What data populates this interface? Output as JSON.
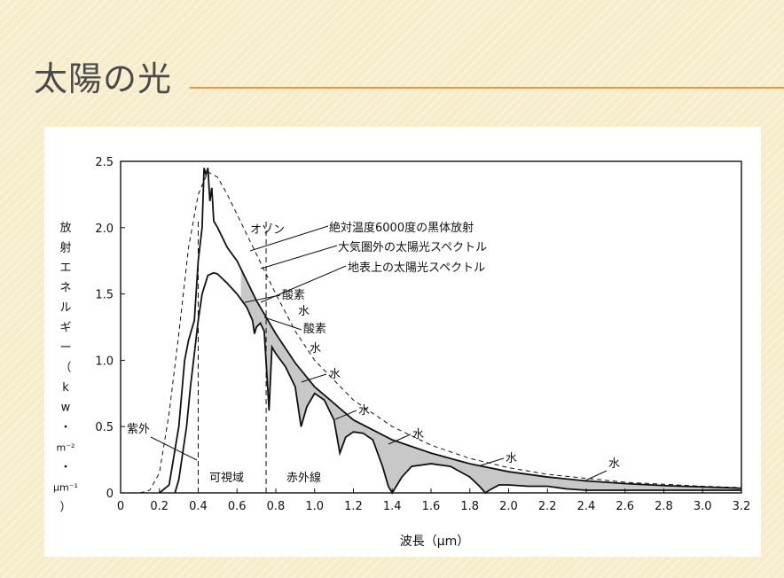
{
  "slide": {
    "title": "太陽の光"
  },
  "chart_data": {
    "type": "line",
    "xlabel": "波長（μm）",
    "ylabel": [
      "放",
      "射",
      "エ",
      "ネ",
      "ル",
      "ギ",
      "ー",
      "（",
      "k",
      "w",
      "・",
      "m⁻²",
      "・",
      "μm⁻¹",
      "）"
    ],
    "xlim": [
      0,
      3.2
    ],
    "ylim": [
      0,
      2.5
    ],
    "xticks": [
      "0",
      "0.2",
      "0.4",
      "0.6",
      "0.8",
      "1.0",
      "1.2",
      "1.4",
      "1.6",
      "1.8",
      "2.0",
      "2.2",
      "2.4",
      "2.6",
      "2.8",
      "3.0",
      "3.2"
    ],
    "yticks": [
      "0",
      "0.5",
      "1.0",
      "1.5",
      "2.0",
      "2.5"
    ],
    "legend_labels": [
      "絶対温度6000度の黒体放射",
      "大気圏外の太陽光スペクトル",
      "地表上の太陽光スペクトル"
    ],
    "regions": [
      "紫外",
      "可視域",
      "赤外線"
    ],
    "absorption_labels": [
      "オゾン",
      "酸素",
      "水",
      "酸素",
      "水",
      "水",
      "水",
      "水",
      "水",
      "水"
    ],
    "region_bounds": [
      0.4,
      0.75
    ],
    "series": [
      {
        "name": "絶対温度6000度の黒体放射",
        "style": "dashed",
        "x": [
          0.1,
          0.15,
          0.2,
          0.25,
          0.3,
          0.35,
          0.4,
          0.45,
          0.5,
          0.55,
          0.6,
          0.7,
          0.8,
          0.9,
          1.0,
          1.2,
          1.4,
          1.6,
          1.8,
          2.0,
          2.2,
          2.4,
          2.6,
          2.8,
          3.0,
          3.2
        ],
        "y": [
          0.0,
          0.02,
          0.15,
          0.6,
          1.2,
          1.85,
          2.25,
          2.42,
          2.38,
          2.25,
          2.1,
          1.8,
          1.5,
          1.22,
          1.0,
          0.7,
          0.5,
          0.36,
          0.26,
          0.19,
          0.14,
          0.11,
          0.08,
          0.065,
          0.05,
          0.04
        ]
      },
      {
        "name": "大気圏外の太陽光スペクトル",
        "style": "solid",
        "x": [
          0.2,
          0.25,
          0.3,
          0.33,
          0.35,
          0.38,
          0.4,
          0.42,
          0.43,
          0.44,
          0.45,
          0.46,
          0.47,
          0.48,
          0.5,
          0.55,
          0.6,
          0.7,
          0.8,
          0.9,
          1.0,
          1.2,
          1.4,
          1.6,
          1.8,
          2.0,
          2.2,
          2.4,
          2.6,
          2.8,
          3.0,
          3.2
        ],
        "y": [
          0.0,
          0.06,
          0.5,
          1.0,
          1.15,
          1.3,
          1.75,
          2.0,
          2.45,
          2.4,
          2.45,
          2.2,
          2.3,
          2.05,
          2.0,
          1.85,
          1.75,
          1.45,
          1.2,
          0.98,
          0.8,
          0.55,
          0.4,
          0.3,
          0.22,
          0.16,
          0.12,
          0.09,
          0.07,
          0.055,
          0.045,
          0.035
        ]
      },
      {
        "name": "地表上の太陽光スペクトル",
        "style": "solid",
        "x": [
          0.28,
          0.3,
          0.32,
          0.34,
          0.36,
          0.38,
          0.4,
          0.42,
          0.45,
          0.48,
          0.5,
          0.55,
          0.6,
          0.65,
          0.68,
          0.69,
          0.7,
          0.72,
          0.74,
          0.76,
          0.765,
          0.78,
          0.8,
          0.85,
          0.9,
          0.93,
          0.96,
          1.0,
          1.05,
          1.1,
          1.13,
          1.16,
          1.2,
          1.25,
          1.3,
          1.35,
          1.38,
          1.4,
          1.45,
          1.5,
          1.6,
          1.7,
          1.8,
          1.85,
          1.88,
          1.9,
          1.95,
          2.0,
          2.1,
          2.2,
          2.3,
          2.4,
          2.5,
          2.6,
          2.8,
          3.0,
          3.2
        ],
        "y": [
          0.0,
          0.1,
          0.3,
          0.5,
          0.8,
          1.05,
          1.3,
          1.5,
          1.64,
          1.66,
          1.65,
          1.58,
          1.5,
          1.4,
          1.3,
          1.2,
          1.25,
          1.28,
          1.22,
          0.75,
          0.62,
          1.1,
          1.05,
          0.95,
          0.8,
          0.5,
          0.65,
          0.75,
          0.7,
          0.55,
          0.3,
          0.42,
          0.46,
          0.45,
          0.4,
          0.2,
          0.05,
          0.0,
          0.12,
          0.2,
          0.22,
          0.2,
          0.12,
          0.05,
          0.0,
          0.02,
          0.06,
          0.06,
          0.05,
          0.05,
          0.03,
          0.02,
          0.02,
          0.02,
          0.02,
          0.02,
          0.02
        ]
      }
    ],
    "colors": {
      "line": "#111111",
      "shade": "#9a9a9a",
      "title_rule": "#e29a3c"
    }
  }
}
